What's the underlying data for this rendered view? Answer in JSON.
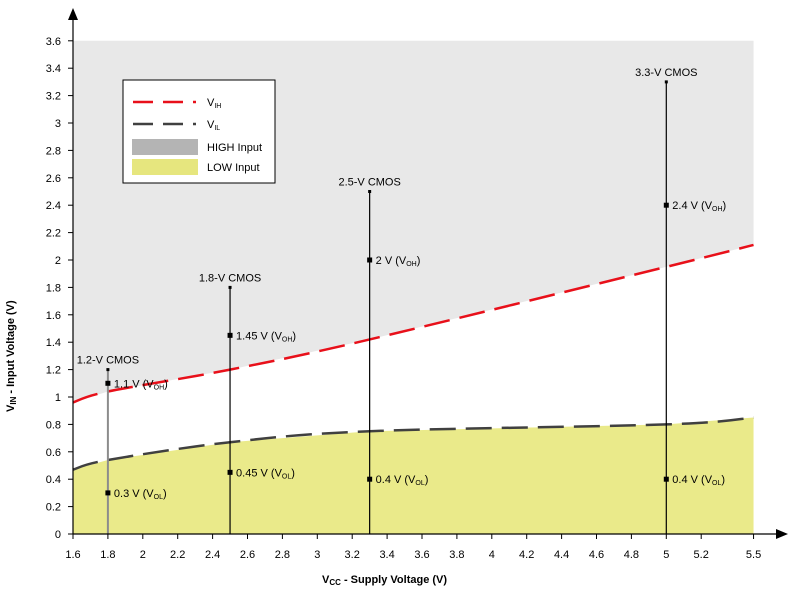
{
  "chart_data": {
    "type": "line",
    "xlabel_main": "V",
    "xlabel_sub": "CC",
    "xlabel_rest": " - Supply Voltage (V)",
    "ylabel_main": "V",
    "ylabel_sub": "IN",
    "ylabel_rest": " - Input Voltage (V)",
    "xlim": [
      1.6,
      5.6
    ],
    "ylim": [
      0,
      3.7
    ],
    "x_ticks": [
      "1.6",
      "1.8",
      "2",
      "2.2",
      "2.4",
      "2.6",
      "2.8",
      "3",
      "3.2",
      "3.4",
      "3.6",
      "3.8",
      "4",
      "4.2",
      "4.4",
      "4.6",
      "4.8",
      "5",
      "5.2",
      "5.5"
    ],
    "x_tick_values": [
      1.6,
      1.8,
      2,
      2.2,
      2.4,
      2.6,
      2.8,
      3,
      3.2,
      3.4,
      3.6,
      3.8,
      4,
      4.2,
      4.4,
      4.6,
      4.8,
      5,
      5.2,
      5.5
    ],
    "y_ticks": [
      "0",
      "0.2",
      "0.4",
      "0.6",
      "0.8",
      "1",
      "1.2",
      "1.4",
      "1.6",
      "1.8",
      "2",
      "2.2",
      "2.4",
      "2.6",
      "2.8",
      "3",
      "3.2",
      "3.4",
      "3.6"
    ],
    "y_tick_values": [
      0,
      0.2,
      0.4,
      0.6,
      0.8,
      1,
      1.2,
      1.4,
      1.6,
      1.8,
      2,
      2.2,
      2.4,
      2.6,
      2.8,
      3,
      3.2,
      3.4,
      3.6
    ],
    "series": [
      {
        "name_main": "V",
        "name_sub": "IH",
        "color": "#e8101a",
        "style": "dashed",
        "x": [
          1.6,
          1.8,
          2.5,
          3.3,
          5,
          5.5
        ],
        "y": [
          0.96,
          1.04,
          1.2,
          1.42,
          1.95,
          2.11
        ]
      },
      {
        "name_main": "V",
        "name_sub": "IL",
        "color": "#404040",
        "style": "dashed",
        "x": [
          1.6,
          1.8,
          2.5,
          3.3,
          5,
          5.5
        ],
        "y": [
          0.47,
          0.54,
          0.67,
          0.75,
          0.8,
          0.85
        ]
      }
    ],
    "regions": [
      {
        "name": "HIGH Input",
        "color": "#e8e8e8",
        "legend_color": "#b4b4b4"
      },
      {
        "name": "LOW Input",
        "color": "#eaea8a",
        "legend_color": "#e6e67e"
      }
    ],
    "standards": [
      {
        "label": "1.2-V CMOS",
        "x": 1.8,
        "vcc": 1.2,
        "line_color": "#8c8c8c",
        "points": [
          {
            "y": 1.1,
            "text": "1.1 V (V",
            "sub": "OH",
            "close": ")"
          },
          {
            "y": 0.3,
            "text": "0.3 V (V",
            "sub": "OL",
            "close": ")"
          }
        ]
      },
      {
        "label": "1.8-V CMOS",
        "x": 2.5,
        "vcc": 1.8,
        "line_color": "#000000",
        "points": [
          {
            "y": 1.45,
            "text": "1.45 V (V",
            "sub": "OH",
            "close": ")"
          },
          {
            "y": 0.45,
            "text": "0.45 V (V",
            "sub": "OL",
            "close": ")"
          }
        ]
      },
      {
        "label": "2.5-V CMOS",
        "x": 3.3,
        "vcc": 2.5,
        "line_color": "#000000",
        "points": [
          {
            "y": 2.0,
            "text": "2 V (V",
            "sub": "OH",
            "close": ")"
          },
          {
            "y": 0.4,
            "text": "0.4 V (V",
            "sub": "OL",
            "close": ")"
          }
        ]
      },
      {
        "label": "3.3-V CMOS",
        "x": 5.0,
        "vcc": 3.3,
        "line_color": "#000000",
        "points": [
          {
            "y": 2.4,
            "text": "2.4 V (V",
            "sub": "OH",
            "close": ")"
          },
          {
            "y": 0.4,
            "text": "0.4 V (V",
            "sub": "OL",
            "close": ")"
          }
        ]
      }
    ],
    "legend_placement": "top-left",
    "grid": false
  }
}
